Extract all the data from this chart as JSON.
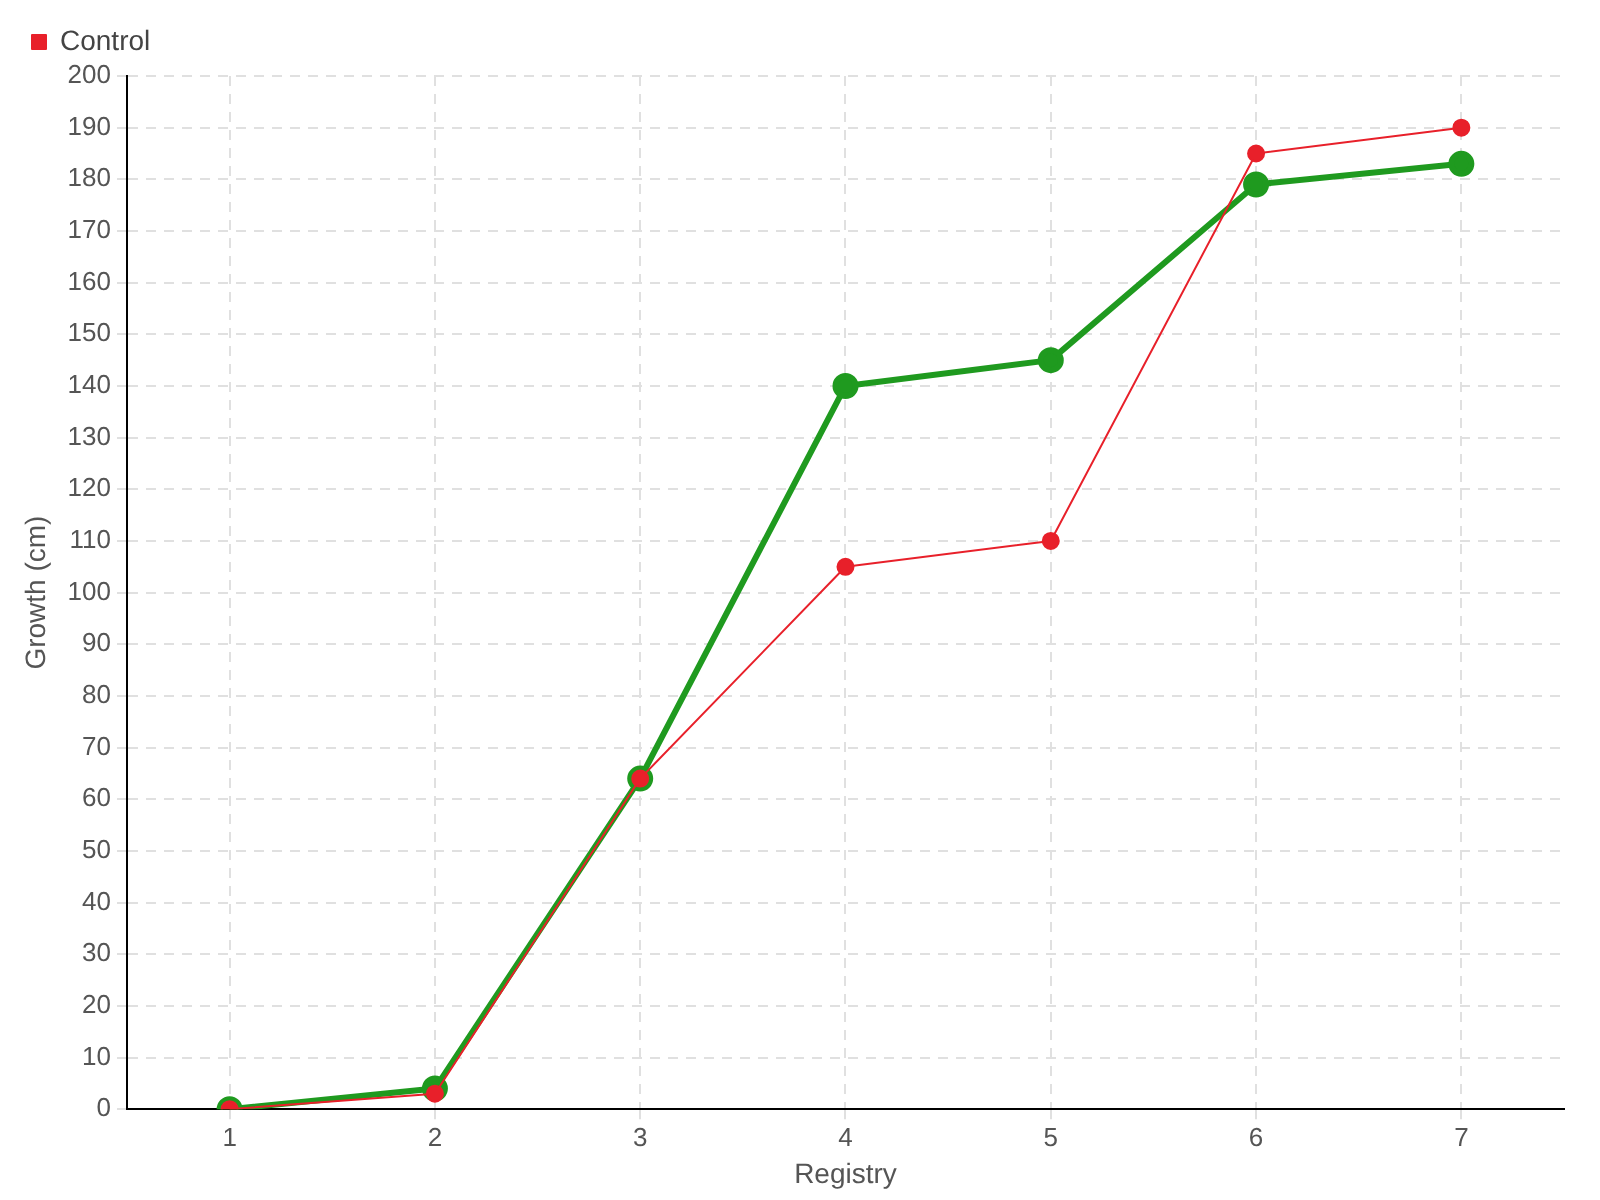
{
  "chart_data": {
    "type": "line",
    "xlabel": "Registry",
    "ylabel": "Growth (cm)",
    "categories": [
      "1",
      "2",
      "3",
      "4",
      "5",
      "6",
      "7"
    ],
    "series": [
      {
        "color": "#1f9a1f",
        "values": [
          0,
          4,
          64,
          140,
          145,
          179,
          183
        ]
      },
      {
        "name": "Control",
        "color": "#e8202a",
        "values": [
          0,
          3,
          64,
          105,
          110,
          185,
          190
        ]
      }
    ],
    "ylim": [
      0,
      200
    ],
    "yticks": [
      0,
      10,
      20,
      30,
      40,
      50,
      60,
      70,
      80,
      90,
      100,
      110,
      120,
      130,
      140,
      150,
      160,
      170,
      180,
      190,
      200
    ],
    "grid": true,
    "legend": "top left",
    "marker": "circle",
    "line_style": "solid"
  }
}
